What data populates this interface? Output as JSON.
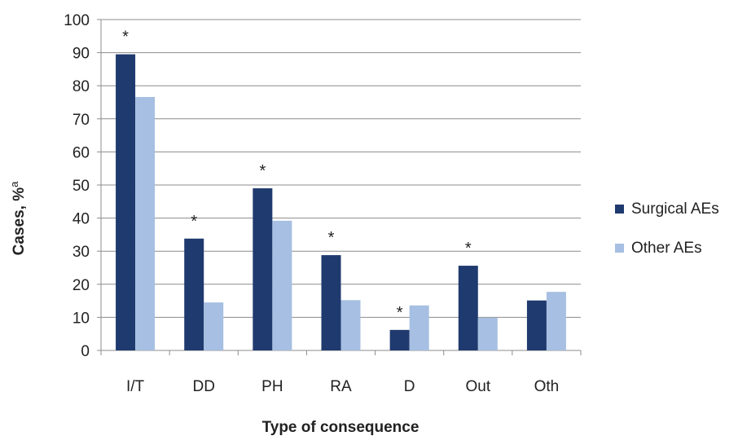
{
  "chart_data": {
    "type": "bar",
    "categories": [
      "I/T",
      "DD",
      "PH",
      "RA",
      "D",
      "Out",
      "Oth"
    ],
    "series": [
      {
        "name": "Surgical AEs",
        "values": [
          89.5,
          33.8,
          49.0,
          28.8,
          6.2,
          25.6,
          15.1
        ],
        "color": "#1F3A6E"
      },
      {
        "name": "Other AEs",
        "values": [
          76.6,
          14.5,
          39.2,
          15.2,
          13.6,
          9.9,
          17.7
        ],
        "color": "#A6BFE2"
      }
    ],
    "significance_marker": "*",
    "significant_categories": [
      "I/T",
      "DD",
      "PH",
      "RA",
      "D",
      "Out"
    ],
    "xlabel": "Type of consequence",
    "ylabel": "Cases, %",
    "ylabel_superscript": "a",
    "ylim": [
      0,
      100
    ],
    "ytick_step": 10,
    "grid": true,
    "legend_position": "right"
  }
}
